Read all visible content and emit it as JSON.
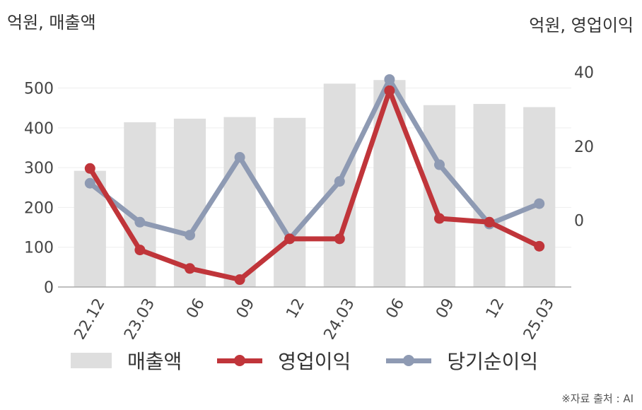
{
  "units": {
    "left": "억원, 매출액",
    "right": "억원, 영업이익"
  },
  "source": "※자료 출처 : AI",
  "colors": {
    "bar": "#dedede",
    "op": "#c0353a",
    "net": "#8e9ab3",
    "axis": "#aaaaaa",
    "grid": "#eeeeee",
    "text": "#444444"
  },
  "chart_data": {
    "type": "bar",
    "categories": [
      "22.12",
      "23.03",
      "06",
      "09",
      "12",
      "24.03",
      "06",
      "09",
      "12",
      "25.03"
    ],
    "series": [
      {
        "name": "매출액",
        "type": "bar",
        "axis": "left",
        "values": [
          292,
          414,
          423,
          427,
          425,
          511,
          520,
          457,
          460,
          452
        ]
      },
      {
        "name": "영업이익",
        "type": "line",
        "axis": "right",
        "values": [
          14,
          -8,
          -13,
          -16,
          -5,
          -5,
          35,
          0.5,
          -0.5,
          -7
        ]
      },
      {
        "name": "당기순이익",
        "type": "line",
        "axis": "right",
        "values": [
          10,
          -0.5,
          -4,
          17,
          -5,
          10.5,
          38,
          15,
          -1,
          4.5
        ]
      }
    ],
    "left_axis": {
      "ylim": [
        0,
        540
      ],
      "ticks": [
        0,
        100,
        200,
        300,
        400,
        500
      ]
    },
    "right_axis": {
      "ylim": [
        -18,
        40
      ],
      "ticks": [
        0,
        20,
        40
      ]
    },
    "legend": "bottom"
  }
}
